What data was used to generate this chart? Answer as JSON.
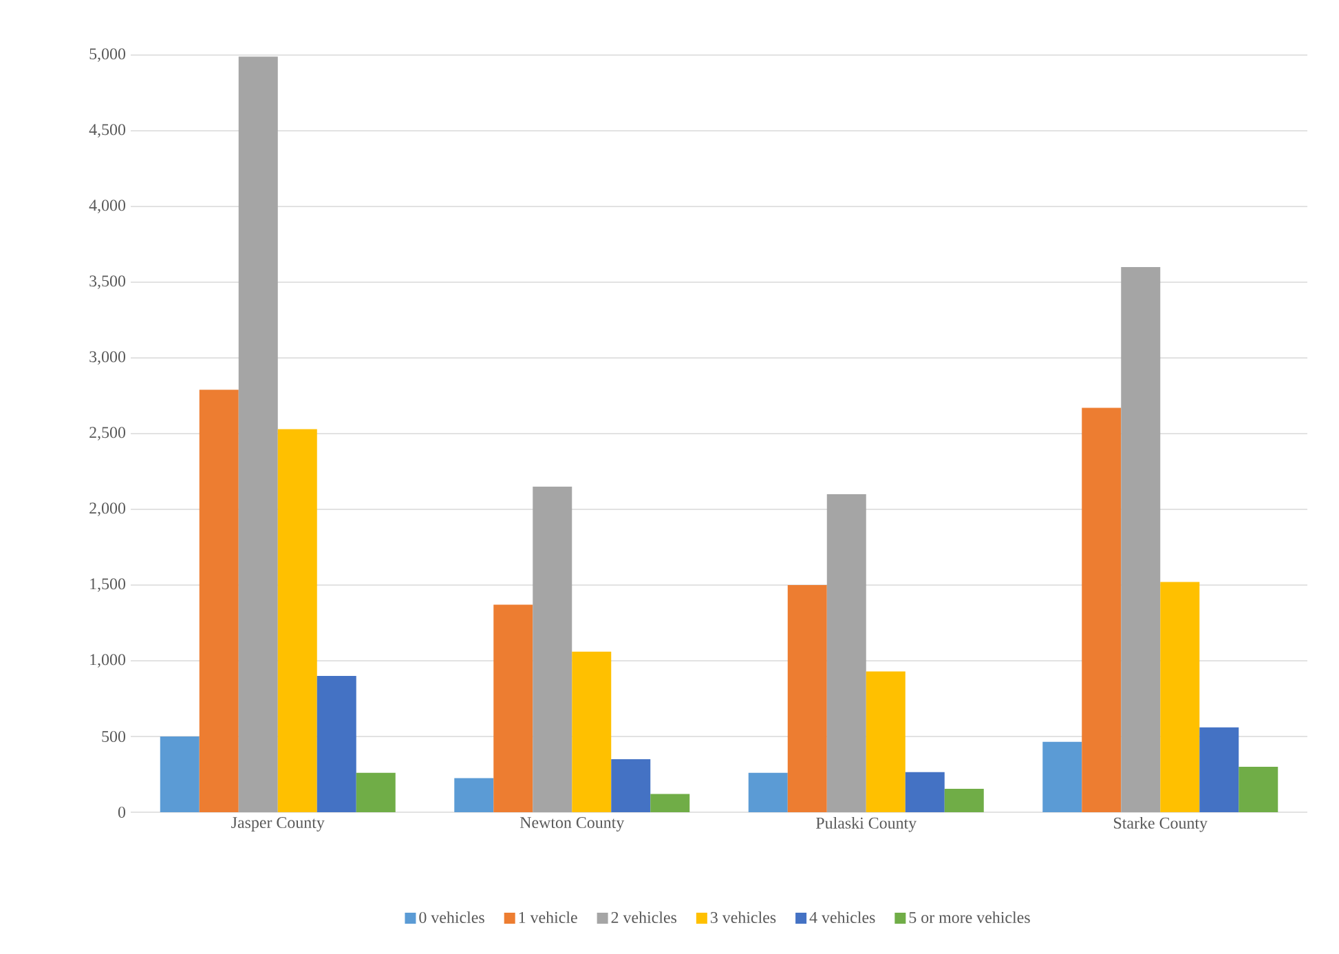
{
  "chart_data": {
    "type": "bar",
    "categories": [
      "Jasper County",
      "Newton County",
      "Pulaski County",
      "Starke County"
    ],
    "series": [
      {
        "name": "0 vehicles",
        "color": "#5b9bd5",
        "values": [
          500,
          225,
          260,
          465
        ]
      },
      {
        "name": "1 vehicle",
        "color": "#ed7d31",
        "values": [
          2790,
          1370,
          1500,
          2670
        ]
      },
      {
        "name": "2 vehicles",
        "color": "#a5a5a5",
        "values": [
          4990,
          2150,
          2100,
          3600
        ]
      },
      {
        "name": "3 vehicles",
        "color": "#ffc000",
        "values": [
          2530,
          1060,
          930,
          1520
        ]
      },
      {
        "name": "4 vehicles",
        "color": "#4472c4",
        "values": [
          900,
          350,
          265,
          560
        ]
      },
      {
        "name": "5 or more vehicles",
        "color": "#70ad47",
        "values": [
          260,
          120,
          155,
          300
        ]
      }
    ],
    "ylim": [
      0,
      5000
    ],
    "yticks": [
      0,
      500,
      {
        "value": 1000,
        "label": "1,000"
      },
      {
        "value": 1500,
        "label": "1,500"
      },
      {
        "value": 2000,
        "label": "2,000"
      },
      {
        "value": 2500,
        "label": "2,500"
      },
      {
        "value": 3000,
        "label": "3,000"
      },
      {
        "value": 3500,
        "label": "3,500"
      },
      {
        "value": 4000,
        "label": "4,000"
      },
      {
        "value": 4500,
        "label": "4,500"
      },
      {
        "value": 5000,
        "label": "5,000"
      }
    ],
    "grid": "y",
    "legend": "bottom"
  }
}
